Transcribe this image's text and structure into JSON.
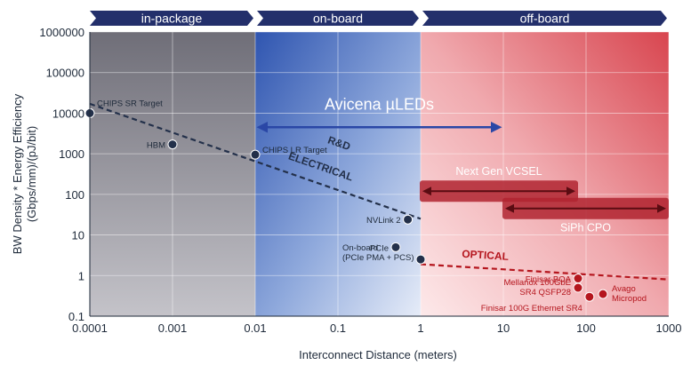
{
  "chart_data": {
    "type": "scatter",
    "xscale": "log",
    "yscale": "log",
    "xlim": [
      0.0001,
      1000
    ],
    "ylim": [
      0.1,
      1000000
    ],
    "xlabel": "Interconnect Distance (meters)",
    "ylabel_line1": "BW Density * Energy Efficiency",
    "ylabel_line2": "(Gbps/mm)/(pJ/bit)",
    "x_ticks": [
      0.0001,
      0.001,
      0.01,
      0.1,
      1,
      10,
      100,
      1000
    ],
    "x_tick_labels": [
      "0.0001",
      "0.001",
      "0.01",
      "0.1",
      "1",
      "10",
      "100",
      "1000"
    ],
    "y_ticks": [
      0.1,
      1,
      10,
      100,
      1000,
      10000,
      100000,
      1000000
    ],
    "y_tick_labels": [
      "0.1",
      "1",
      "10",
      "100",
      "1000",
      "10000",
      "100000",
      "1000000"
    ],
    "grid": true,
    "bands": [
      {
        "label": "in-package",
        "from": 0.0001,
        "to": 0.01,
        "color": "#807f87"
      },
      {
        "label": "on-board",
        "from": 0.01,
        "to": 1,
        "color": "#3f62b8"
      },
      {
        "label": "off-board",
        "from": 1,
        "to": 1000,
        "color": "#d9505a"
      }
    ],
    "electrical_points": [
      {
        "label": "CHIPS SR Target",
        "x": 0.0001,
        "y": 10000
      },
      {
        "label": "HBM",
        "x": 0.001,
        "y": 1700
      },
      {
        "label": "CHIPS LR Target",
        "x": 0.01,
        "y": 950
      },
      {
        "label": "NVLink 2",
        "x": 0.7,
        "y": 24
      },
      {
        "label": "PCIe",
        "x": 0.5,
        "y": 5
      },
      {
        "label": "On-board",
        "label2": "(PCIe PMA + PCS)",
        "x": 1.0,
        "y": 2.5
      }
    ],
    "optical_points": [
      {
        "label": "Finisar BOA",
        "x": 80,
        "y": 0.85
      },
      {
        "label": "Mellanox 100GbE",
        "label2": "SR4 QSFP28",
        "x": 80,
        "y": 0.5
      },
      {
        "label": "Finisar 100G Ethernet SR4",
        "x": 110,
        "y": 0.3
      },
      {
        "label": "Avago",
        "label2": "Micropod",
        "x": 160,
        "y": 0.35
      }
    ],
    "trend_electrical": {
      "label1": "R&D",
      "label2": "ELECTRICAL",
      "x": [
        0.0001,
        1
      ],
      "y": [
        17000,
        25
      ]
    },
    "trend_optical": {
      "label": "OPTICAL",
      "x": [
        1,
        1000
      ],
      "y": [
        1.9,
        0.8
      ]
    },
    "ranges": [
      {
        "label": "Avicena µLEDs",
        "from": 0.01,
        "to": 10,
        "y": 4500
      },
      {
        "label": "Next Gen VCSEL",
        "from": 1,
        "to": 80,
        "y": 120
      },
      {
        "label": "SiPh CPO",
        "from": 10,
        "to": 1000,
        "y": 45
      }
    ]
  },
  "colors": {
    "in_package": "#807f87",
    "on_board": "#3f62b8",
    "off_board": "#d9505a",
    "header": "#232f6b",
    "electrical": "#23304a",
    "optical": "#b5161e",
    "avicena_arrow": "#2a47a6"
  }
}
